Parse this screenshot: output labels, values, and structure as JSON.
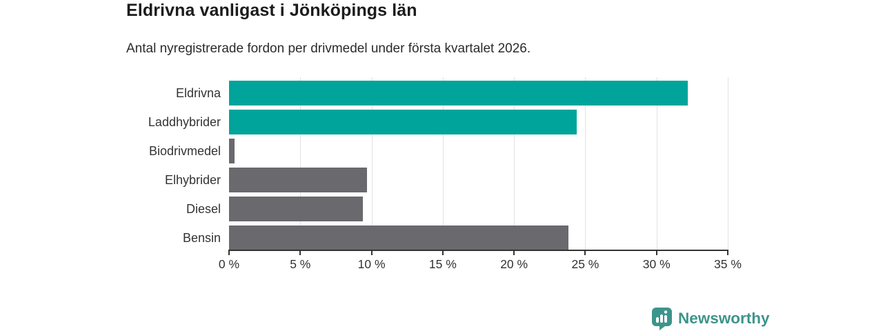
{
  "header": {
    "title": "Eldrivna vanligast i Jönköpings län",
    "subtitle": "Antal nyregistrerade fordon per drivmedel under första kvartalet 2026."
  },
  "chart_data": {
    "type": "bar",
    "orientation": "horizontal",
    "title": "Eldrivna vanligast i Jönköpings län",
    "subtitle": "Antal nyregistrerade fordon per drivmedel under första kvartalet 2026.",
    "categories": [
      "Eldrivna",
      "Laddhybrider",
      "Biodrivmedel",
      "Elhybrider",
      "Diesel",
      "Bensin"
    ],
    "values": [
      32.2,
      24.4,
      0.4,
      9.7,
      9.4,
      23.8
    ],
    "unit": "%",
    "bar_colors": [
      "#00a49a",
      "#00a49a",
      "#69696e",
      "#69696e",
      "#69696e",
      "#69696e"
    ],
    "accent_color": "#00a49a",
    "neutral_color": "#69696e",
    "xlabel": "",
    "ylabel": "",
    "xlim": [
      0,
      35
    ],
    "x_tick_step": 5,
    "x_tick_labels": [
      "0 %",
      "5 %",
      "10 %",
      "15 %",
      "20 %",
      "25 %",
      "30 %",
      "35 %"
    ],
    "grid": "vertical",
    "gridline_color": "#e2e2e2",
    "legend": "none"
  },
  "footer": {
    "brand": "Newsworthy",
    "brand_color": "#3d948b",
    "logo_icon": "bar-chart-pin-icon"
  }
}
